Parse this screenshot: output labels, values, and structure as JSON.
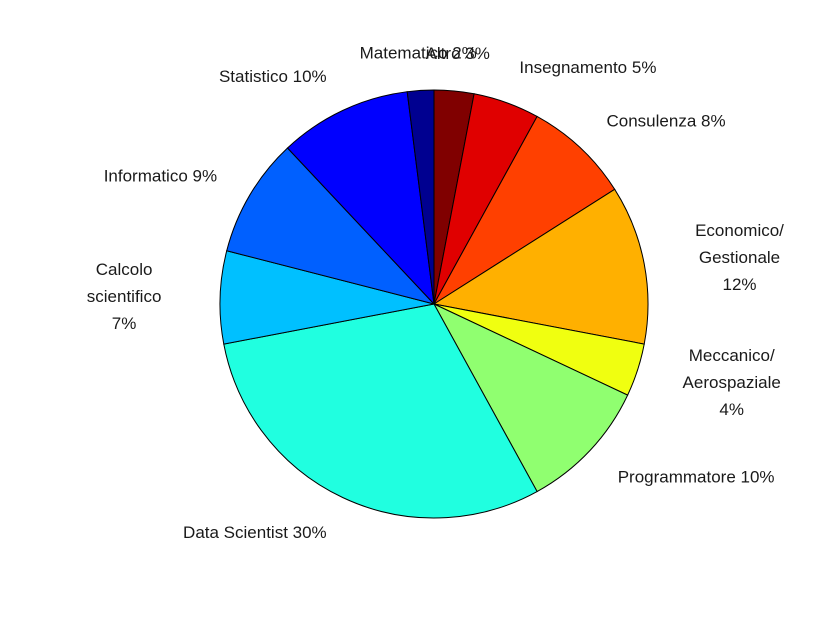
{
  "chart_data": {
    "type": "pie",
    "title": "",
    "start_angle_deg": 0,
    "direction": "clockwise",
    "slices": [
      {
        "label": [
          "Altro 3%"
        ],
        "value": 3,
        "color": "#800000"
      },
      {
        "label": [
          "Insegnamento 5%"
        ],
        "value": 5,
        "color": "#e00000"
      },
      {
        "label": [
          "Consulenza 8%"
        ],
        "value": 8,
        "color": "#ff4000"
      },
      {
        "label": [
          "Economico/",
          "Gestionale",
          "12%"
        ],
        "value": 12,
        "color": "#ffb000"
      },
      {
        "label": [
          "Meccanico/",
          "Aerospaziale",
          "4%"
        ],
        "value": 4,
        "color": "#f0ff10"
      },
      {
        "label": [
          "Programmatore 10%"
        ],
        "value": 10,
        "color": "#90ff70"
      },
      {
        "label": [
          "Data Scientist 30%"
        ],
        "value": 30,
        "color": "#20ffe0"
      },
      {
        "label": [
          "Calcolo",
          "scientifico",
          "7%"
        ],
        "value": 7,
        "color": "#00c0ff"
      },
      {
        "label": [
          "Informatico 9%"
        ],
        "value": 9,
        "color": "#0060ff"
      },
      {
        "label": [
          "Statistico 10%"
        ],
        "value": 10,
        "color": "#0000ff"
      },
      {
        "label": [
          "Matematico 2%"
        ],
        "value": 2,
        "color": "#000090"
      }
    ]
  }
}
